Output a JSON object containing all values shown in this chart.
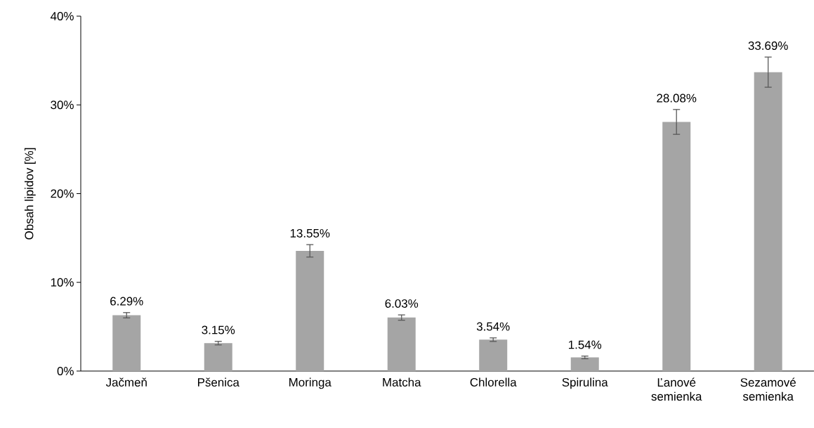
{
  "chart_data": {
    "type": "bar",
    "ylabel": "Obsah lipidov [%]",
    "categories": [
      "Jačmeň",
      "Pšenica",
      "Moringa",
      "Matcha",
      "Chlorella",
      "Spirulina",
      "Ľanové semienka",
      "Sezamové semienka"
    ],
    "values": [
      6.29,
      3.15,
      13.55,
      6.03,
      3.54,
      1.54,
      28.08,
      33.69
    ],
    "errors": [
      0.3,
      0.2,
      0.7,
      0.3,
      0.2,
      0.15,
      1.4,
      1.7
    ],
    "value_labels": [
      "6.29%",
      "3.15%",
      "13.55%",
      "6.03%",
      "3.54%",
      "1.54%",
      "28.08%",
      "33.69%"
    ],
    "color": "#a5a5a5",
    "ylim": [
      0,
      40
    ],
    "yticks": [
      {
        "value": 0,
        "label": "0%"
      },
      {
        "value": 10,
        "label": "10%"
      },
      {
        "value": 20,
        "label": "20%"
      },
      {
        "value": 30,
        "label": "30%"
      },
      {
        "value": 40,
        "label": "40%"
      }
    ],
    "grid": false
  }
}
